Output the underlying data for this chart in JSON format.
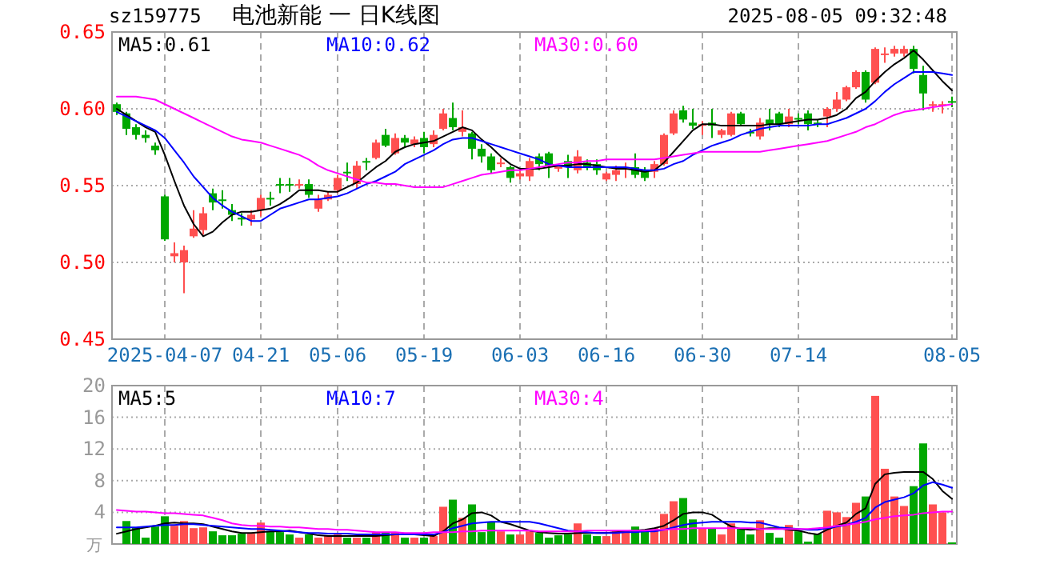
{
  "chart_data": [
    {
      "type": "candlestick",
      "title": "电池新能 一 日K线图",
      "annotations": [
        "sz159775",
        "2025-08-05 09:32:48"
      ],
      "categories": [
        null,
        null,
        null,
        null,
        null,
        "2025-04-07",
        null,
        null,
        null,
        null,
        null,
        null,
        null,
        null,
        null,
        "04-21",
        null,
        null,
        null,
        null,
        null,
        null,
        null,
        "05-06",
        null,
        null,
        null,
        null,
        null,
        null,
        null,
        null,
        "05-19",
        null,
        null,
        null,
        null,
        null,
        null,
        null,
        null,
        null,
        "06-03",
        null,
        null,
        null,
        null,
        null,
        null,
        null,
        null,
        "06-16",
        null,
        null,
        null,
        null,
        null,
        null,
        null,
        null,
        null,
        "06-30",
        null,
        null,
        null,
        null,
        null,
        null,
        null,
        null,
        null,
        "07-14",
        null,
        null,
        null,
        null,
        null,
        null,
        null,
        null,
        null,
        null,
        null,
        null,
        null,
        null,
        null,
        "08-05"
      ],
      "ohlc": [
        [
          0.603,
          0.604,
          0.596,
          0.598
        ],
        [
          0.597,
          0.598,
          0.583,
          0.587
        ],
        [
          0.588,
          0.59,
          0.58,
          0.583
        ],
        [
          0.583,
          0.586,
          0.578,
          0.581
        ],
        [
          0.576,
          0.578,
          0.57,
          0.573
        ],
        [
          0.543,
          0.544,
          0.514,
          0.515
        ],
        [
          0.504,
          0.513,
          0.5,
          0.506
        ],
        [
          0.5,
          0.511,
          0.48,
          0.508
        ],
        [
          0.517,
          0.534,
          0.516,
          0.522
        ],
        [
          0.521,
          0.536,
          0.518,
          0.532
        ],
        [
          0.545,
          0.548,
          0.534,
          0.539
        ],
        [
          0.541,
          0.547,
          0.535,
          0.54
        ],
        [
          0.534,
          0.538,
          0.527,
          0.531
        ],
        [
          0.529,
          0.532,
          0.524,
          0.528
        ],
        [
          0.528,
          0.534,
          0.524,
          0.531
        ],
        [
          0.534,
          0.544,
          0.53,
          0.542
        ],
        [
          0.542,
          0.546,
          0.537,
          0.541
        ],
        [
          0.551,
          0.555,
          0.545,
          0.55
        ],
        [
          0.551,
          0.555,
          0.546,
          0.55
        ],
        [
          0.55,
          0.554,
          0.548,
          0.551
        ],
        [
          0.551,
          0.554,
          0.542,
          0.544
        ],
        [
          0.535,
          0.544,
          0.533,
          0.541
        ],
        [
          0.541,
          0.546,
          0.54,
          0.544
        ],
        [
          0.547,
          0.557,
          0.545,
          0.555
        ],
        [
          0.559,
          0.565,
          0.553,
          0.558
        ],
        [
          0.551,
          0.566,
          0.548,
          0.563
        ],
        [
          0.566,
          0.568,
          0.56,
          0.565
        ],
        [
          0.568,
          0.58,
          0.567,
          0.578
        ],
        [
          0.583,
          0.587,
          0.575,
          0.576
        ],
        [
          0.571,
          0.584,
          0.57,
          0.581
        ],
        [
          0.581,
          0.583,
          0.575,
          0.578
        ],
        [
          0.577,
          0.582,
          0.575,
          0.58
        ],
        [
          0.581,
          0.585,
          0.571,
          0.575
        ],
        [
          0.577,
          0.586,
          0.575,
          0.583
        ],
        [
          0.587,
          0.6,
          0.586,
          0.597
        ],
        [
          0.594,
          0.604,
          0.586,
          0.588
        ],
        [
          0.585,
          0.599,
          0.582,
          0.588
        ],
        [
          0.584,
          0.585,
          0.567,
          0.574
        ],
        [
          0.574,
          0.577,
          0.565,
          0.569
        ],
        [
          0.569,
          0.571,
          0.558,
          0.56
        ],
        [
          0.564,
          0.568,
          0.562,
          0.565
        ],
        [
          0.562,
          0.563,
          0.552,
          0.555
        ],
        [
          0.556,
          0.56,
          0.554,
          0.558
        ],
        [
          0.556,
          0.568,
          0.553,
          0.566
        ],
        [
          0.569,
          0.571,
          0.56,
          0.564
        ],
        [
          0.571,
          0.572,
          0.555,
          0.563
        ],
        [
          0.561,
          0.564,
          0.559,
          0.563
        ],
        [
          0.566,
          0.57,
          0.555,
          0.562
        ],
        [
          0.56,
          0.573,
          0.558,
          0.569
        ],
        [
          0.565,
          0.567,
          0.56,
          0.562
        ],
        [
          0.564,
          0.567,
          0.557,
          0.56
        ],
        [
          0.554,
          0.559,
          0.553,
          0.558
        ],
        [
          0.557,
          0.563,
          0.553,
          0.56
        ],
        [
          0.561,
          0.565,
          0.555,
          0.562
        ],
        [
          0.562,
          0.571,
          0.555,
          0.557
        ],
        [
          0.56,
          0.562,
          0.553,
          0.555
        ],
        [
          0.559,
          0.566,
          0.555,
          0.564
        ],
        [
          0.564,
          0.584,
          0.563,
          0.583
        ],
        [
          0.584,
          0.599,
          0.583,
          0.597
        ],
        [
          0.599,
          0.602,
          0.591,
          0.593
        ],
        [
          0.591,
          0.6,
          0.587,
          0.589
        ],
        [
          0.589,
          0.592,
          0.583,
          0.59
        ],
        [
          0.591,
          0.6,
          0.581,
          0.589
        ],
        [
          0.583,
          0.587,
          0.581,
          0.586
        ],
        [
          0.583,
          0.598,
          0.582,
          0.597
        ],
        [
          0.597,
          0.598,
          0.589,
          0.59
        ],
        [
          0.585,
          0.587,
          0.582,
          0.584
        ],
        [
          0.582,
          0.594,
          0.58,
          0.591
        ],
        [
          0.593,
          0.6,
          0.586,
          0.59
        ],
        [
          0.597,
          0.598,
          0.588,
          0.59
        ],
        [
          0.59,
          0.6,
          0.588,
          0.595
        ],
        [
          0.594,
          0.597,
          0.59,
          0.593
        ],
        [
          0.597,
          0.599,
          0.586,
          0.59
        ],
        [
          0.591,
          0.593,
          0.588,
          0.59
        ],
        [
          0.595,
          0.601,
          0.588,
          0.6
        ],
        [
          0.6,
          0.611,
          0.598,
          0.606
        ],
        [
          0.606,
          0.615,
          0.605,
          0.614
        ],
        [
          0.614,
          0.625,
          0.613,
          0.624
        ],
        [
          0.624,
          0.625,
          0.604,
          0.606
        ],
        [
          0.617,
          0.64,
          0.616,
          0.639
        ],
        [
          0.635,
          0.64,
          0.63,
          0.636
        ],
        [
          0.636,
          0.641,
          0.634,
          0.639
        ],
        [
          0.636,
          0.641,
          0.634,
          0.639
        ],
        [
          0.639,
          0.641,
          0.623,
          0.626
        ],
        [
          0.622,
          0.628,
          0.599,
          0.61
        ],
        [
          0.602,
          0.605,
          0.598,
          0.603
        ],
        [
          0.602,
          0.605,
          0.597,
          0.603
        ],
        [
          0.605,
          0.608,
          0.601,
          0.604
        ]
      ],
      "series": [
        {
          "type": "line",
          "name": "MA5:0.61",
          "color": "#000000",
          "values": [
            0.6,
            0.596,
            0.592,
            0.588,
            0.585,
            0.57,
            0.553,
            0.537,
            0.525,
            0.517,
            0.52,
            0.526,
            0.531,
            0.533,
            0.533,
            0.534,
            0.535,
            0.538,
            0.542,
            0.547,
            0.547,
            0.547,
            0.546,
            0.546,
            0.549,
            0.552,
            0.557,
            0.562,
            0.566,
            0.572,
            0.575,
            0.577,
            0.578,
            0.579,
            0.582,
            0.585,
            0.588,
            0.586,
            0.58,
            0.575,
            0.569,
            0.564,
            0.561,
            0.561,
            0.561,
            0.562,
            0.563,
            0.563,
            0.564,
            0.564,
            0.563,
            0.562,
            0.561,
            0.561,
            0.56,
            0.559,
            0.56,
            0.565,
            0.572,
            0.579,
            0.586,
            0.59,
            0.59,
            0.589,
            0.589,
            0.589,
            0.589,
            0.589,
            0.59,
            0.59,
            0.591,
            0.592,
            0.593,
            0.593,
            0.594,
            0.596,
            0.6,
            0.607,
            0.611,
            0.618,
            0.624,
            0.629,
            0.633,
            0.638,
            0.632,
            0.625,
            0.618,
            0.612
          ]
        },
        {
          "type": "line",
          "name": "MA10:0.62",
          "color": "#0000ff",
          "values": [
            0.598,
            0.595,
            0.592,
            0.589,
            0.586,
            0.581,
            0.573,
            0.565,
            0.556,
            0.549,
            0.542,
            0.537,
            0.533,
            0.53,
            0.527,
            0.527,
            0.531,
            0.535,
            0.537,
            0.539,
            0.541,
            0.541,
            0.542,
            0.543,
            0.545,
            0.548,
            0.551,
            0.553,
            0.556,
            0.559,
            0.564,
            0.567,
            0.57,
            0.573,
            0.577,
            0.58,
            0.581,
            0.581,
            0.579,
            0.577,
            0.575,
            0.573,
            0.571,
            0.569,
            0.567,
            0.564,
            0.563,
            0.562,
            0.562,
            0.562,
            0.562,
            0.562,
            0.562,
            0.562,
            0.561,
            0.56,
            0.56,
            0.561,
            0.564,
            0.566,
            0.57,
            0.573,
            0.576,
            0.578,
            0.58,
            0.583,
            0.585,
            0.587,
            0.588,
            0.589,
            0.589,
            0.589,
            0.589,
            0.59,
            0.59,
            0.592,
            0.594,
            0.597,
            0.6,
            0.605,
            0.611,
            0.616,
            0.62,
            0.624,
            0.624,
            0.624,
            0.623,
            0.622
          ]
        },
        {
          "type": "line",
          "name": "MA30:0.60",
          "color": "#ff00ff",
          "values": [
            0.608,
            0.608,
            0.608,
            0.607,
            0.606,
            0.603,
            0.6,
            0.597,
            0.594,
            0.591,
            0.588,
            0.585,
            0.582,
            0.58,
            0.579,
            0.578,
            0.576,
            0.574,
            0.572,
            0.57,
            0.567,
            0.563,
            0.56,
            0.558,
            0.556,
            0.554,
            0.552,
            0.552,
            0.551,
            0.551,
            0.55,
            0.549,
            0.549,
            0.549,
            0.549,
            0.551,
            0.553,
            0.555,
            0.557,
            0.558,
            0.559,
            0.56,
            0.56,
            0.561,
            0.562,
            0.563,
            0.564,
            0.565,
            0.565,
            0.566,
            0.566,
            0.567,
            0.567,
            0.567,
            0.567,
            0.567,
            0.567,
            0.568,
            0.569,
            0.57,
            0.571,
            0.572,
            0.572,
            0.572,
            0.572,
            0.572,
            0.572,
            0.572,
            0.573,
            0.574,
            0.575,
            0.576,
            0.577,
            0.578,
            0.579,
            0.581,
            0.583,
            0.585,
            0.588,
            0.59,
            0.593,
            0.596,
            0.598,
            0.599,
            0.6,
            0.601,
            0.602,
            0.603
          ]
        }
      ],
      "ylim": [
        0.45,
        0.65
      ],
      "yticks": [
        {
          "value": 0.45,
          "label": "0.45"
        },
        {
          "value": 0.5,
          "label": "0.50"
        },
        {
          "value": 0.55,
          "label": "0.55"
        },
        {
          "value": 0.6,
          "label": "0.60"
        },
        {
          "value": 0.65,
          "label": "0.65"
        }
      ],
      "grid": true,
      "legend": "top"
    },
    {
      "type": "bar",
      "ylabel": "万",
      "tick_labels": "y",
      "categories": [
        null,
        null,
        null,
        null,
        null,
        null,
        null,
        null,
        null,
        null,
        null,
        null,
        null,
        null,
        null,
        null,
        null,
        null,
        null,
        null,
        null,
        null,
        null,
        null,
        null,
        null,
        null,
        null,
        null,
        null,
        null,
        null,
        null,
        null,
        null,
        null,
        null,
        null,
        null,
        null,
        null,
        null,
        null,
        null,
        null,
        null,
        null,
        null,
        null,
        null,
        null,
        null,
        null,
        null,
        null,
        null,
        null,
        null,
        null,
        null,
        null,
        null,
        null,
        null,
        null,
        null,
        null,
        null,
        null,
        null,
        null,
        null,
        null,
        null,
        null,
        null,
        null,
        null,
        null,
        null,
        null,
        null,
        null,
        null,
        null,
        null,
        null,
        null
      ],
      "values": [
        null,
        2.9,
        2.1,
        0.8,
        2.2,
        3.5,
        2.3,
        2.9,
        2.0,
        2.1,
        1.6,
        1.1,
        1.1,
        1.3,
        1.3,
        2.7,
        1.6,
        1.5,
        1.2,
        0.8,
        1.2,
        0.8,
        1.1,
        1.2,
        0.8,
        0.8,
        0.8,
        1.5,
        1.5,
        1.5,
        0.8,
        0.8,
        0.8,
        1.0,
        4.7,
        5.6,
        3.3,
        5.0,
        1.5,
        2.8,
        1.6,
        1.2,
        1.2,
        1.6,
        1.4,
        0.8,
        1.1,
        1.2,
        2.6,
        1.2,
        1.0,
        1.0,
        1.6,
        1.6,
        2.2,
        1.6,
        2.0,
        3.8,
        5.4,
        5.8,
        3.1,
        2.0,
        2.0,
        1.2,
        2.6,
        1.9,
        1.2,
        3.0,
        1.4,
        0.8,
        2.4,
        1.6,
        0.3,
        1.3,
        4.2,
        4.0,
        3.4,
        5.2,
        6.0,
        18.7,
        9.5,
        6.0,
        4.8,
        7.3,
        12.7,
        5.0,
        4.0,
        0.2
      ],
      "colors": [
        "#00a800",
        "#00a800",
        "#00a800",
        "#00a800",
        "#00a800",
        "#00a800",
        "#ff5050",
        "#ff5050",
        "#ff5050",
        "#ff5050",
        "#00a800",
        "#00a800",
        "#00a800",
        "#00a800",
        "#ff5050",
        "#ff5050",
        "#00a800",
        "#00a800",
        "#00a800",
        "#ff5050",
        "#00a800",
        "#ff5050",
        "#ff5050",
        "#ff5050",
        "#00a800",
        "#ff5050",
        "#00a800",
        "#ff5050",
        "#00a800",
        "#ff5050",
        "#00a800",
        "#ff5050",
        "#00a800",
        "#ff5050",
        "#ff5050",
        "#00a800",
        "#ff5050",
        "#00a800",
        "#00a800",
        "#00a800",
        "#ff5050",
        "#00a800",
        "#ff5050",
        "#ff5050",
        "#00a800",
        "#00a800",
        "#00a800",
        "#00a800",
        "#ff5050",
        "#00a800",
        "#00a800",
        "#ff5050",
        "#ff5050",
        "#ff5050",
        "#00a800",
        "#00a800",
        "#ff5050",
        "#ff5050",
        "#ff5050",
        "#00a800",
        "#00a800",
        "#ff5050",
        "#00a800",
        "#ff5050",
        "#ff5050",
        "#00a800",
        "#00a800",
        "#ff5050",
        "#00a800",
        "#00a800",
        "#ff5050",
        "#00a800",
        "#00a800",
        "#00a800",
        "#ff5050",
        "#ff5050",
        "#ff5050",
        "#ff5050",
        "#00a800",
        "#ff5050",
        "#ff5050",
        "#ff5050",
        "#ff5050",
        "#00a800",
        "#00a800",
        "#ff5050",
        "#ff5050",
        "#00a800"
      ],
      "series": [
        {
          "type": "line",
          "name": "MA5:5",
          "color": "#000000",
          "values": [
            1.3,
            1.6,
            1.9,
            2.1,
            2.3,
            2.6,
            2.7,
            2.6,
            2.6,
            2.5,
            2.2,
            1.9,
            1.6,
            1.4,
            1.4,
            1.5,
            1.6,
            1.6,
            1.7,
            1.5,
            1.3,
            1.1,
            1.0,
            1.0,
            1.0,
            1.0,
            1.0,
            1.0,
            1.1,
            1.2,
            1.2,
            1.2,
            1.1,
            1.0,
            1.6,
            2.6,
            3.1,
            3.9,
            4.0,
            3.6,
            2.8,
            2.5,
            2.1,
            1.7,
            1.5,
            1.4,
            1.3,
            1.3,
            1.4,
            1.4,
            1.4,
            1.4,
            1.5,
            1.6,
            1.7,
            1.8,
            2.0,
            2.3,
            3.0,
            3.8,
            4.0,
            4.0,
            3.7,
            2.9,
            2.2,
            1.9,
            1.8,
            1.9,
            2.0,
            2.0,
            1.8,
            1.7,
            1.4,
            1.2,
            1.8,
            2.3,
            2.7,
            3.8,
            4.5,
            7.6,
            8.8,
            9.0,
            9.1,
            9.1,
            9.1,
            8.2,
            6.7,
            5.7
          ]
        },
        {
          "type": "line",
          "name": "MA10:7",
          "color": "#0000ff",
          "values": [
            2.1,
            2.1,
            2.1,
            2.2,
            2.3,
            2.4,
            2.4,
            2.5,
            2.5,
            2.4,
            2.3,
            2.2,
            2.1,
            2.0,
            1.9,
            1.9,
            1.8,
            1.7,
            1.6,
            1.5,
            1.4,
            1.4,
            1.3,
            1.3,
            1.3,
            1.2,
            1.2,
            1.2,
            1.2,
            1.2,
            1.2,
            1.2,
            1.2,
            1.2,
            1.5,
            2.0,
            2.3,
            2.6,
            2.7,
            2.8,
            2.8,
            2.8,
            2.8,
            2.8,
            2.6,
            2.3,
            2.0,
            1.7,
            1.6,
            1.5,
            1.4,
            1.4,
            1.4,
            1.5,
            1.5,
            1.6,
            1.6,
            1.8,
            2.1,
            2.4,
            2.6,
            2.7,
            2.8,
            2.8,
            2.8,
            2.8,
            2.7,
            2.7,
            2.4,
            2.1,
            2.0,
            1.9,
            1.8,
            1.8,
            2.0,
            2.2,
            2.4,
            2.8,
            3.3,
            4.6,
            5.3,
            5.6,
            5.9,
            6.4,
            7.4,
            7.8,
            7.5,
            7.1
          ]
        },
        {
          "type": "line",
          "name": "MA30:4",
          "color": "#ff00ff",
          "values": [
            4.3,
            4.2,
            4.1,
            4.1,
            4.0,
            3.9,
            3.9,
            3.8,
            3.7,
            3.6,
            3.3,
            3.0,
            2.6,
            2.4,
            2.3,
            2.3,
            2.2,
            2.2,
            2.1,
            2.1,
            2.0,
            1.9,
            1.9,
            1.8,
            1.8,
            1.7,
            1.6,
            1.5,
            1.5,
            1.5,
            1.4,
            1.4,
            1.4,
            1.5,
            1.5,
            1.5,
            1.6,
            1.6,
            1.7,
            1.7,
            1.7,
            1.7,
            1.7,
            1.7,
            1.6,
            1.6,
            1.6,
            1.6,
            1.6,
            1.7,
            1.7,
            1.7,
            1.7,
            1.7,
            1.7,
            1.7,
            1.8,
            1.8,
            1.9,
            1.9,
            2.0,
            2.0,
            2.0,
            2.0,
            2.0,
            2.0,
            2.0,
            1.9,
            1.9,
            1.9,
            1.9,
            1.9,
            1.9,
            2.0,
            2.1,
            2.3,
            2.4,
            2.6,
            2.8,
            3.1,
            3.3,
            3.5,
            3.6,
            3.7,
            3.9,
            4.0,
            4.1,
            4.1
          ]
        }
      ],
      "ylim": [
        0,
        20
      ],
      "yticks": [
        4,
        8,
        12,
        16,
        20
      ],
      "grid": true,
      "legend": "top"
    }
  ]
}
